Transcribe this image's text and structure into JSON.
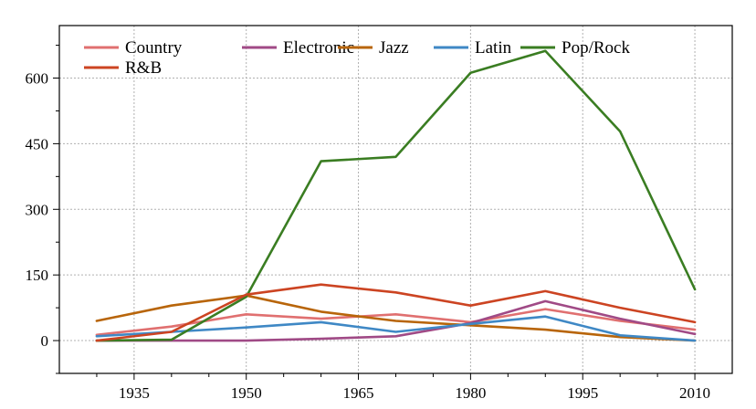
{
  "chart_data": {
    "type": "line",
    "title": "",
    "xlabel": "",
    "ylabel": "",
    "x": [
      1930,
      1940,
      1950,
      1960,
      1970,
      1980,
      1990,
      2000,
      2010
    ],
    "xlim": [
      1925,
      2015
    ],
    "ylim": [
      -75,
      720
    ],
    "xticks": [
      1935,
      1950,
      1965,
      1980,
      1995,
      2010
    ],
    "yticks": [
      0,
      150,
      300,
      450,
      600
    ],
    "grid": true,
    "legend_position": "top-left",
    "series": [
      {
        "name": "Country",
        "color": "#e07070",
        "values": [
          13,
          32,
          60,
          50,
          60,
          42,
          72,
          45,
          25
        ]
      },
      {
        "name": "Electronic",
        "color": "#a04a86",
        "values": [
          0,
          0,
          0,
          4,
          10,
          40,
          90,
          50,
          15
        ]
      },
      {
        "name": "Jazz",
        "color": "#b8650a",
        "values": [
          45,
          80,
          103,
          66,
          45,
          35,
          25,
          8,
          0
        ]
      },
      {
        "name": "Latin",
        "color": "#3f88c5",
        "values": [
          10,
          20,
          30,
          42,
          20,
          38,
          55,
          12,
          0
        ]
      },
      {
        "name": "Pop/Rock",
        "color": "#3a7d22",
        "values": [
          0,
          2,
          100,
          410,
          420,
          612,
          662,
          478,
          117
        ]
      },
      {
        "name": "R&B",
        "color": "#cc4422",
        "values": [
          0,
          20,
          105,
          128,
          110,
          80,
          113,
          75,
          42
        ]
      }
    ]
  }
}
